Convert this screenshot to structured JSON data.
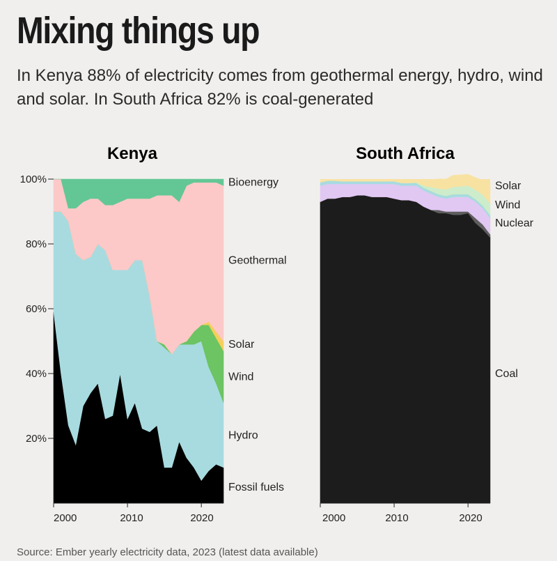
{
  "header": {
    "title": "Mixing things up",
    "subtitle": "In Kenya 88% of electricity comes from geothermal energy, hydro, wind and solar. In South Africa 82% is coal-generated"
  },
  "footer": {
    "source": "Source: Ember yearly electricity data, 2023 (latest data available)"
  },
  "colors": {
    "fossil": "#000000",
    "coal": "#1c1c1c",
    "hydro": "#a8dbe0",
    "wind": "#6cc463",
    "solar": "#f5cf5c",
    "geothermal": "#fcc8c8",
    "bioenergy": "#62c795",
    "nuclear": "#e0c8f2",
    "gas": "#5e5e5e",
    "sa_wind": "#cdeccb",
    "sa_solar": "#f8e2a2",
    "sa_hydro": "#a8dbe0",
    "sa_bio": "#62c795"
  },
  "chart_data": [
    {
      "type": "area",
      "title": "Kenya",
      "x_ticks": [
        "2000",
        "2010",
        "2020"
      ],
      "y_ticks": [
        "20%",
        "40%",
        "60%",
        "80%",
        "100%"
      ],
      "ylim": [
        0,
        100
      ],
      "xlim": [
        2000,
        2023
      ],
      "stacked": true,
      "x": [
        2000,
        2001,
        2002,
        2003,
        2004,
        2005,
        2006,
        2007,
        2008,
        2009,
        2010,
        2011,
        2012,
        2013,
        2014,
        2015,
        2016,
        2017,
        2018,
        2019,
        2020,
        2021,
        2022,
        2023
      ],
      "series": [
        {
          "name": "Fossil fuels",
          "color_key": "fossil",
          "values": [
            59,
            40,
            24,
            18,
            30,
            34,
            37,
            26,
            27,
            40,
            26,
            31,
            23,
            22,
            24,
            11,
            11,
            19,
            14,
            11,
            7,
            10,
            12,
            11
          ]
        },
        {
          "name": "Hydro",
          "color_key": "hydro",
          "values": [
            31,
            50,
            63,
            59,
            45,
            42,
            43,
            52,
            45,
            32,
            46,
            44,
            52,
            42,
            26,
            37,
            35,
            30,
            35,
            38,
            43,
            32,
            25,
            20
          ]
        },
        {
          "name": "Wind",
          "color_key": "wind",
          "values": [
            0,
            0,
            0,
            0,
            0,
            0,
            0,
            0,
            0,
            0,
            0,
            0,
            0,
            0,
            0,
            1,
            0,
            0,
            1,
            4,
            5,
            13,
            14,
            16
          ]
        },
        {
          "name": "Solar",
          "color_key": "solar",
          "values": [
            0,
            0,
            0,
            0,
            0,
            0,
            0,
            0,
            0,
            0,
            0,
            0,
            0,
            0,
            0,
            0,
            0,
            0,
            0,
            0,
            0,
            1,
            2,
            3
          ]
        },
        {
          "name": "Geothermal",
          "color_key": "geothermal",
          "values": [
            10,
            10,
            4,
            14,
            18,
            18,
            14,
            14,
            20,
            21,
            22,
            19,
            19,
            30,
            45,
            46,
            49,
            44,
            48,
            46,
            44,
            43,
            46,
            48
          ]
        },
        {
          "name": "Bioenergy",
          "color_key": "bioenergy",
          "values": [
            0,
            0,
            9,
            9,
            7,
            6,
            6,
            8,
            8,
            7,
            6,
            6,
            6,
            6,
            5,
            5,
            5,
            7,
            2,
            1,
            1,
            1,
            1,
            2
          ]
        }
      ]
    },
    {
      "type": "area",
      "title": "South Africa",
      "x_ticks": [
        "2000",
        "2010",
        "2020"
      ],
      "ylim": [
        0,
        100
      ],
      "xlim": [
        2000,
        2023
      ],
      "stacked": true,
      "x": [
        2000,
        2001,
        2002,
        2003,
        2004,
        2005,
        2006,
        2007,
        2008,
        2009,
        2010,
        2011,
        2012,
        2013,
        2014,
        2015,
        2016,
        2017,
        2018,
        2019,
        2020,
        2021,
        2022,
        2023
      ],
      "series": [
        {
          "name": "Coal",
          "color_key": "coal",
          "values": [
            93,
            94,
            94,
            94.5,
            94.5,
            95,
            95,
            94.5,
            94.5,
            94.5,
            94,
            93.5,
            93.5,
            93,
            91.5,
            90.5,
            89.5,
            89.5,
            89,
            89,
            89.5,
            86.5,
            84.5,
            82
          ]
        },
        {
          "name": "",
          "color_key": "gas",
          "values": [
            0,
            0,
            0,
            0,
            0,
            0,
            0,
            0,
            0,
            0,
            0,
            0,
            0,
            0,
            0,
            0,
            1,
            0.5,
            1,
            1,
            0.5,
            1.5,
            1.5,
            1
          ]
        },
        {
          "name": "Nuclear",
          "color_key": "nuclear",
          "values": [
            5,
            4.5,
            4.5,
            4,
            4,
            3.5,
            3.5,
            4,
            4,
            4,
            4.5,
            4.5,
            4.5,
            5,
            5,
            5,
            4,
            4,
            4.5,
            4.5,
            4.5,
            5,
            5,
            5
          ]
        },
        {
          "name": "",
          "color_key": "sa_hydro",
          "values": [
            1,
            1,
            1,
            0.8,
            0.8,
            0.8,
            0.8,
            0.8,
            0.8,
            0.8,
            0.8,
            0.8,
            0.8,
            0.8,
            0.8,
            0.8,
            0.8,
            0.8,
            0.8,
            0.8,
            0.8,
            0.8,
            0.8,
            0.8
          ]
        },
        {
          "name": "",
          "color_key": "sa_bio",
          "values": [
            0,
            0,
            0,
            0,
            0,
            0,
            0,
            0,
            0,
            0,
            0,
            0,
            0,
            0,
            0,
            0,
            0,
            0,
            0,
            0,
            0,
            0,
            0,
            0
          ]
        },
        {
          "name": "Wind",
          "color_key": "sa_wind",
          "values": [
            0,
            0,
            0,
            0,
            0,
            0,
            0,
            0,
            0,
            0,
            0,
            0,
            0,
            0.2,
            0.7,
            1.2,
            1.8,
            2,
            2.3,
            2.5,
            2.7,
            3,
            3.4,
            3.7
          ]
        },
        {
          "name": "Solar",
          "color_key": "sa_solar",
          "values": [
            0,
            0,
            0,
            0,
            0,
            0,
            0,
            0,
            0,
            0,
            0,
            0,
            0,
            0.4,
            1.3,
            2,
            3,
            3.2,
            3.6,
            3.5,
            3.5,
            3.7,
            4.4,
            6.5
          ]
        }
      ]
    }
  ]
}
